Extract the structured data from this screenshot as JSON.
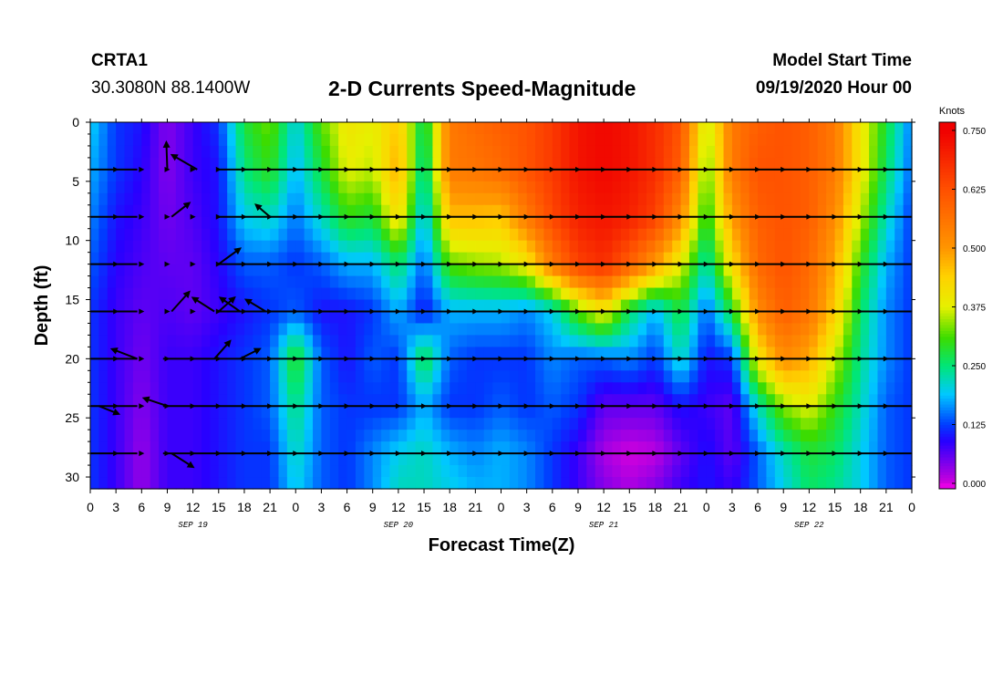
{
  "header": {
    "station_id": "CRTA1",
    "station_coords": "30.3080N 88.1400W",
    "title": "2-D Currents Speed-Magnitude",
    "start_label": "Model Start Time",
    "start_time": "09/19/2020 Hour 00"
  },
  "chart_data": {
    "type": "heatmap",
    "title": "2-D Currents Speed-Magnitude",
    "xlabel": "Forecast Time(Z)",
    "ylabel": "Depth (ft)",
    "x_ticks": [
      "0",
      "3",
      "6",
      "9",
      "12",
      "15",
      "18",
      "21",
      "0",
      "3",
      "6",
      "9",
      "12",
      "15",
      "18",
      "21",
      "0",
      "3",
      "6",
      "9",
      "12",
      "15",
      "18",
      "21",
      "0",
      "3",
      "6",
      "9",
      "12",
      "15",
      "18",
      "21",
      "0"
    ],
    "date_labels": [
      "SEP 19",
      "SEP 20",
      "SEP 21",
      "SEP 22"
    ],
    "x_range_hours": [
      0,
      96
    ],
    "y_ticks": [
      0,
      5,
      10,
      15,
      20,
      25,
      30
    ],
    "y_range": [
      0,
      31
    ],
    "y_inverted": true,
    "colorbar": {
      "label": "Knots",
      "ticks": [
        "0.750",
        "0.625",
        "0.500",
        "0.375",
        "0.250",
        "0.125",
        "0.000"
      ],
      "range": [
        0,
        0.75
      ]
    },
    "vector_depths": [
      4,
      8,
      12,
      16,
      20,
      24,
      28
    ],
    "speed_profile_hours": [
      0,
      3,
      6,
      9,
      12,
      15,
      18,
      21,
      24,
      27,
      30,
      33,
      36,
      39,
      42,
      45,
      48,
      51,
      54,
      57,
      60,
      63,
      66,
      69,
      72,
      75,
      78,
      81,
      84,
      87,
      90,
      93,
      96
    ],
    "speed_profile_depths": [
      0,
      4,
      8,
      12,
      16,
      20,
      24,
      28,
      31
    ],
    "speed_grid": [
      [
        0.2,
        0.12,
        0.1,
        0.04,
        0.08,
        0.12,
        0.28,
        0.33,
        0.2,
        0.32,
        0.4,
        0.38,
        0.45,
        0.25,
        0.55,
        0.58,
        0.6,
        0.62,
        0.66,
        0.72,
        0.74,
        0.72,
        0.68,
        0.62,
        0.35,
        0.55,
        0.6,
        0.62,
        0.6,
        0.55,
        0.4,
        0.28,
        0.15
      ],
      [
        0.18,
        0.12,
        0.09,
        0.04,
        0.08,
        0.1,
        0.25,
        0.3,
        0.18,
        0.28,
        0.38,
        0.36,
        0.48,
        0.22,
        0.55,
        0.56,
        0.58,
        0.62,
        0.66,
        0.72,
        0.74,
        0.72,
        0.68,
        0.6,
        0.32,
        0.55,
        0.62,
        0.62,
        0.6,
        0.55,
        0.4,
        0.26,
        0.14
      ],
      [
        0.16,
        0.1,
        0.08,
        0.05,
        0.07,
        0.1,
        0.2,
        0.22,
        0.15,
        0.22,
        0.3,
        0.28,
        0.42,
        0.18,
        0.46,
        0.46,
        0.45,
        0.55,
        0.64,
        0.7,
        0.72,
        0.7,
        0.65,
        0.52,
        0.28,
        0.5,
        0.6,
        0.62,
        0.6,
        0.52,
        0.36,
        0.22,
        0.12
      ],
      [
        0.14,
        0.09,
        0.07,
        0.06,
        0.06,
        0.09,
        0.14,
        0.14,
        0.12,
        0.14,
        0.18,
        0.18,
        0.26,
        0.14,
        0.32,
        0.34,
        0.35,
        0.4,
        0.55,
        0.65,
        0.68,
        0.6,
        0.5,
        0.38,
        0.22,
        0.42,
        0.58,
        0.62,
        0.58,
        0.48,
        0.3,
        0.18,
        0.12
      ],
      [
        0.12,
        0.08,
        0.06,
        0.07,
        0.06,
        0.08,
        0.1,
        0.12,
        0.14,
        0.1,
        0.1,
        0.12,
        0.18,
        0.1,
        0.18,
        0.18,
        0.18,
        0.16,
        0.2,
        0.32,
        0.4,
        0.26,
        0.18,
        0.28,
        0.14,
        0.28,
        0.52,
        0.6,
        0.56,
        0.44,
        0.26,
        0.16,
        0.12
      ],
      [
        0.12,
        0.08,
        0.05,
        0.08,
        0.08,
        0.1,
        0.12,
        0.14,
        0.3,
        0.14,
        0.1,
        0.14,
        0.12,
        0.28,
        0.14,
        0.12,
        0.12,
        0.12,
        0.16,
        0.14,
        0.14,
        0.16,
        0.12,
        0.22,
        0.1,
        0.12,
        0.4,
        0.52,
        0.48,
        0.36,
        0.24,
        0.16,
        0.12
      ],
      [
        0.12,
        0.08,
        0.04,
        0.08,
        0.08,
        0.1,
        0.12,
        0.14,
        0.25,
        0.14,
        0.12,
        0.12,
        0.12,
        0.18,
        0.12,
        0.12,
        0.14,
        0.12,
        0.14,
        0.12,
        0.06,
        0.06,
        0.06,
        0.1,
        0.08,
        0.06,
        0.22,
        0.34,
        0.38,
        0.3,
        0.22,
        0.14,
        0.12
      ],
      [
        0.12,
        0.08,
        0.03,
        0.08,
        0.08,
        0.1,
        0.12,
        0.12,
        0.22,
        0.14,
        0.12,
        0.16,
        0.2,
        0.22,
        0.18,
        0.16,
        0.18,
        0.16,
        0.12,
        0.08,
        0.02,
        0.0,
        0.01,
        0.06,
        0.1,
        0.06,
        0.14,
        0.22,
        0.28,
        0.26,
        0.2,
        0.14,
        0.12
      ],
      [
        0.12,
        0.08,
        0.03,
        0.08,
        0.08,
        0.1,
        0.12,
        0.12,
        0.2,
        0.14,
        0.12,
        0.16,
        0.22,
        0.22,
        0.2,
        0.18,
        0.18,
        0.16,
        0.12,
        0.08,
        0.04,
        0.02,
        0.04,
        0.08,
        0.1,
        0.08,
        0.14,
        0.2,
        0.26,
        0.24,
        0.2,
        0.14,
        0.12
      ]
    ]
  }
}
